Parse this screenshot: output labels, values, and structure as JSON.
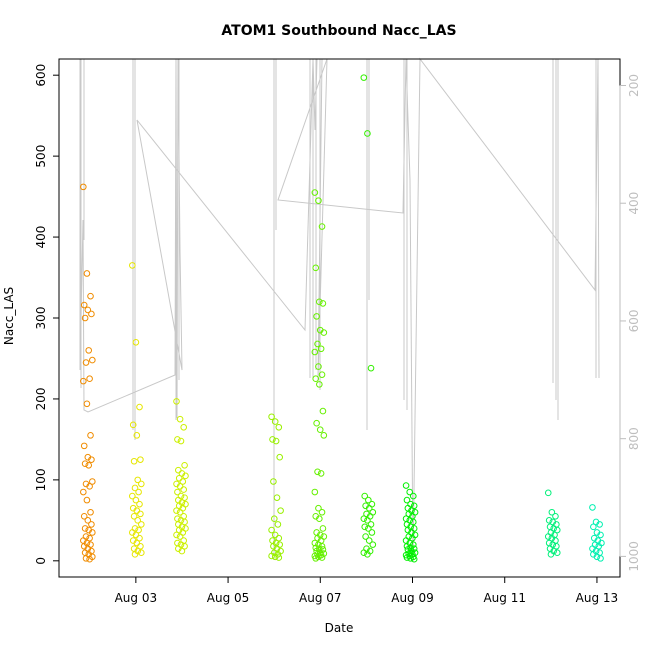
{
  "chart_data": {
    "type": "scatter",
    "title": "ATOM1 Southbound Nacc_LAS",
    "xlabel": "Date",
    "ylabel": "Nacc_LAS",
    "xlim": [
      "2023-08-01T08:00",
      "2023-08-13T12:00"
    ],
    "ylim": [
      -20,
      620
    ],
    "x_ticks": [
      {
        "value": "2023-08-03",
        "label": "Aug 03"
      },
      {
        "value": "2023-08-05",
        "label": "Aug 05"
      },
      {
        "value": "2023-08-07",
        "label": "Aug 07"
      },
      {
        "value": "2023-08-09",
        "label": "Aug 09"
      },
      {
        "value": "2023-08-11",
        "label": "Aug 11"
      },
      {
        "value": "2023-08-13",
        "label": "Aug 13"
      }
    ],
    "y_ticks": [
      0,
      100,
      200,
      300,
      400,
      500,
      600
    ],
    "right_axis": {
      "ylim": [
        1035,
        155
      ],
      "ticks": [
        200,
        400,
        600,
        800,
        1000
      ],
      "color": "#bebebe"
    },
    "point_style": {
      "marker": "open-circle"
    },
    "series": [
      {
        "color": "#f08c00",
        "x": "2023-08-01T23:00",
        "y": [
          462,
          355,
          327,
          316,
          310,
          305,
          300,
          260,
          248,
          245,
          225,
          222,
          194,
          155,
          142,
          128,
          125,
          120,
          118,
          98,
          95,
          92,
          85,
          75,
          60,
          55,
          50,
          45,
          40,
          38,
          35,
          30,
          28,
          25,
          22,
          20,
          18,
          15,
          12,
          10,
          8,
          5,
          3,
          2
        ]
      },
      {
        "color": "#e6e600",
        "x": "2023-08-03T00:30",
        "y": [
          365,
          270,
          190,
          168,
          155,
          125,
          123,
          100,
          95,
          90,
          85,
          80,
          75,
          70,
          65,
          62,
          58,
          55,
          50,
          45,
          40,
          38,
          35,
          32,
          28,
          25,
          22,
          18,
          15,
          12,
          10,
          8
        ]
      },
      {
        "color": "#ccf000",
        "x": "2023-08-03T23:30",
        "y": [
          197,
          175,
          165,
          150,
          148,
          118,
          112,
          108,
          105,
          102,
          98,
          95,
          92,
          88,
          85,
          80,
          78,
          75,
          72,
          70,
          68,
          65,
          62,
          60,
          55,
          52,
          50,
          48,
          45,
          42,
          40,
          38,
          35,
          32,
          30,
          25,
          22,
          20,
          18,
          15,
          12
        ]
      },
      {
        "color": "#99f000",
        "x": "2023-08-06T01:00",
        "y": [
          178,
          172,
          165,
          150,
          148,
          128,
          98,
          78,
          62,
          52,
          45,
          38,
          32,
          28,
          25,
          22,
          20,
          18,
          15,
          12,
          10,
          8,
          6,
          5,
          4
        ]
      },
      {
        "color": "#66f000",
        "x": "2023-08-06T23:30",
        "y": [
          455,
          445,
          413,
          362,
          320,
          318,
          302,
          285,
          282,
          268,
          262,
          258,
          240,
          230,
          225,
          218,
          185,
          170,
          162,
          155,
          110,
          108,
          85,
          65,
          60,
          55,
          52,
          40,
          35,
          32,
          30,
          28,
          25,
          22,
          20,
          18,
          16,
          15,
          14,
          12,
          10,
          9,
          8,
          7,
          6,
          5,
          4,
          3
        ]
      },
      {
        "color": "#33f000",
        "x": "2023-08-08T01:00",
        "y": [
          597,
          528,
          238,
          80,
          75,
          70,
          68,
          65,
          60,
          58,
          55,
          52,
          50,
          45,
          42,
          40,
          35,
          30,
          25,
          20,
          15,
          12,
          10,
          8
        ]
      },
      {
        "color": "#00f000",
        "x": "2023-08-08T23:00",
        "y": [
          93,
          85,
          80,
          75,
          70,
          68,
          65,
          62,
          60,
          58,
          55,
          52,
          50,
          48,
          45,
          42,
          40,
          38,
          35,
          32,
          30,
          28,
          25,
          22,
          20,
          18,
          16,
          15,
          14,
          12,
          10,
          9,
          8,
          7,
          6,
          5,
          4,
          3,
          2
        ]
      },
      {
        "color": "#00f07a",
        "x": "2023-08-12T01:00",
        "y": [
          84,
          60,
          55,
          50,
          48,
          45,
          42,
          40,
          38,
          35,
          32,
          30,
          28,
          25,
          22,
          20,
          18,
          15,
          12,
          10,
          8
        ]
      },
      {
        "color": "#00f0b0",
        "x": "2023-08-13T00:00",
        "y": [
          66,
          48,
          45,
          42,
          35,
          32,
          28,
          25,
          22,
          20,
          18,
          15,
          12,
          10,
          8,
          5,
          3
        ]
      }
    ]
  }
}
